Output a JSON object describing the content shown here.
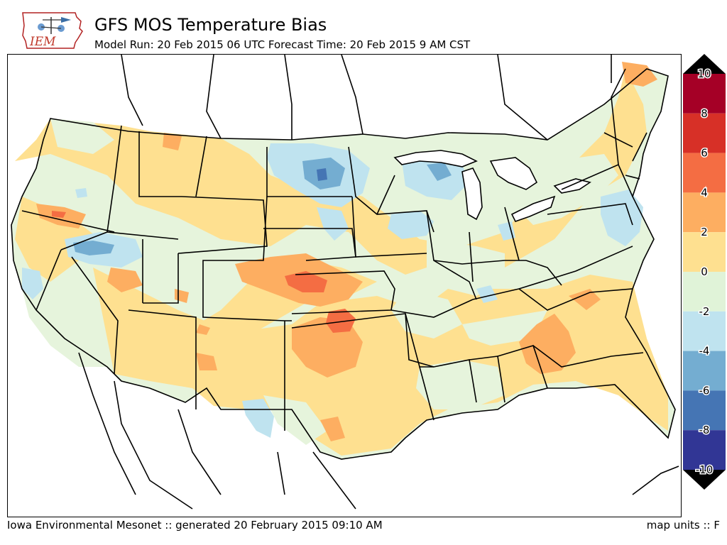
{
  "header": {
    "logo_text": "IEM",
    "title": "GFS MOS Temperature Bias",
    "subtitle": "Model Run: 20 Feb 2015 06 UTC Forecast Time: 20 Feb 2015 9 AM CST"
  },
  "footer": {
    "left": "Iowa Environmental Mesonet :: generated 20 February 2015 09:10 AM",
    "right": "map units :: F"
  },
  "legend": {
    "ticks": [
      "10",
      "8",
      "6",
      "4",
      "2",
      "0",
      "-2",
      "-4",
      "-6",
      "-8",
      "-10"
    ],
    "colors": {
      "8_to_10": "#a50026",
      "6_to_8": "#d73027",
      "4_to_6": "#f46d43",
      "2_to_4": "#fdae61",
      "0_to_2": "#fee090",
      "-2_to_0": "#e0f3d8",
      "-4_to_-2": "#bfe3ef",
      "-6_to_-4": "#74add1",
      "-8_to_-6": "#4575b4",
      "-10_to_-8": "#313695"
    },
    "overflow_color": "#000000"
  },
  "map": {
    "region": "Contiguous United States",
    "field": "GFS MOS temperature bias",
    "regions": [
      {
        "name": "warm bias Kansas-Oklahoma",
        "bias_bin": "4 to 6"
      },
      {
        "name": "warm bias north Texas",
        "bias_bin": "2 to 4"
      },
      {
        "name": "warm bias Georgia-Alabama",
        "bias_bin": "2 to 4"
      },
      {
        "name": "warm bias Nevada-Utah",
        "bias_bin": "2 to 4"
      },
      {
        "name": "warm bias northern Maine",
        "bias_bin": "2 to 4"
      },
      {
        "name": "cold bias Minnesota-Dakotas",
        "bias_bin": "-4 to -2"
      },
      {
        "name": "cold bias Minnesota core",
        "bias_bin": "-8 to -6"
      },
      {
        "name": "cold bias Wisconsin",
        "bias_bin": "-4 to -2"
      },
      {
        "name": "cold bias northern Nevada",
        "bias_bin": "-6 to -4"
      },
      {
        "name": "cold bias Virginia-Maryland",
        "bias_bin": "-4 to -2"
      },
      {
        "name": "cold bias west Texas",
        "bias_bin": "-4 to -2"
      }
    ]
  }
}
